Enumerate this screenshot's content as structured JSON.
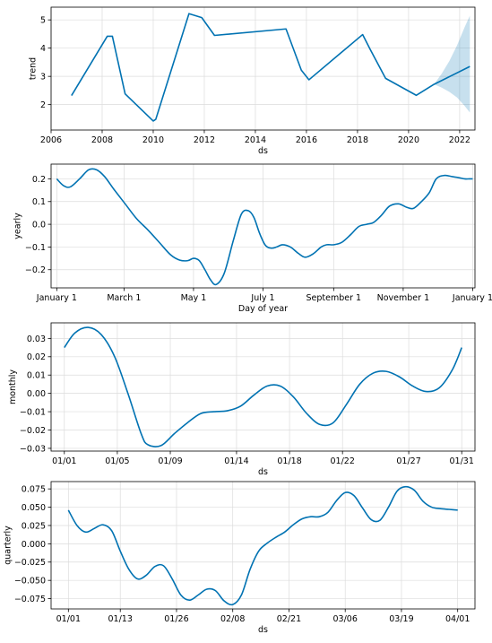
{
  "chart_data": [
    {
      "type": "line",
      "name_id": "trend",
      "xlabel": "ds",
      "ylabel": "trend",
      "xlim": [
        2006,
        2022.6
      ],
      "ylim": [
        1.1,
        5.45
      ],
      "grid": true,
      "xticks": [
        2006,
        2008,
        2010,
        2012,
        2014,
        2016,
        2018,
        2020,
        2022
      ],
      "xtick_labels": [
        "2006",
        "2008",
        "2010",
        "2012",
        "2014",
        "2016",
        "2018",
        "2020",
        "2022"
      ],
      "yticks": [
        2,
        3,
        4,
        5
      ],
      "ytick_labels": [
        "2",
        "3",
        "4",
        "5"
      ],
      "x": [
        2006.8,
        2008.2,
        2008.4,
        2008.9,
        2010.0,
        2010.1,
        2011.4,
        2011.9,
        2012.4,
        2015.2,
        2015.8,
        2016.1,
        2018.2,
        2018.5,
        2019.1,
        2020.3,
        2021.0,
        2022.4
      ],
      "y": [
        2.32,
        4.42,
        4.42,
        2.38,
        1.42,
        1.48,
        5.22,
        5.08,
        4.45,
        4.68,
        3.22,
        2.88,
        4.48,
        3.95,
        2.93,
        2.33,
        2.72,
        3.35
      ],
      "uncertainty": {
        "x": [
          2021.0,
          2021.3,
          2021.6,
          2021.9,
          2022.2,
          2022.4
        ],
        "upper": [
          2.72,
          3.1,
          3.55,
          4.1,
          4.75,
          5.15
        ],
        "lower": [
          2.72,
          2.6,
          2.45,
          2.25,
          1.95,
          1.72
        ]
      }
    },
    {
      "type": "line",
      "name_id": "yearly",
      "xlabel": "Day of year",
      "ylabel": "yearly",
      "xlim": [
        -5,
        367
      ],
      "ylim": [
        -0.28,
        0.265
      ],
      "grid": true,
      "xticks": [
        0,
        59,
        120,
        181,
        243,
        304,
        365
      ],
      "xtick_labels": [
        "January 1",
        "March 1",
        "May 1",
        "July 1",
        "September 1",
        "November 1",
        "January 1"
      ],
      "yticks": [
        -0.2,
        -0.1,
        0.0,
        0.1,
        0.2
      ],
      "ytick_labels": [
        "−0.2",
        "−0.1",
        "0.0",
        "0.1",
        "0.2"
      ],
      "x": [
        0,
        6,
        12,
        20,
        28,
        35,
        42,
        50,
        60,
        70,
        80,
        90,
        100,
        108,
        115,
        120,
        125,
        130,
        135,
        140,
        147,
        155,
        162,
        168,
        173,
        178,
        183,
        188,
        193,
        198,
        205,
        212,
        218,
        225,
        232,
        237,
        243,
        250,
        258,
        265,
        272,
        278,
        285,
        292,
        300,
        307,
        313,
        320,
        327,
        333,
        340,
        347,
        353,
        358,
        362,
        365
      ],
      "y": [
        0.2,
        0.17,
        0.165,
        0.2,
        0.24,
        0.24,
        0.21,
        0.155,
        0.09,
        0.025,
        -0.025,
        -0.08,
        -0.135,
        -0.158,
        -0.16,
        -0.15,
        -0.16,
        -0.2,
        -0.245,
        -0.265,
        -0.215,
        -0.07,
        0.045,
        0.06,
        0.03,
        -0.04,
        -0.092,
        -0.105,
        -0.1,
        -0.09,
        -0.1,
        -0.128,
        -0.145,
        -0.13,
        -0.1,
        -0.09,
        -0.09,
        -0.08,
        -0.045,
        -0.01,
        0.0,
        0.008,
        0.04,
        0.08,
        0.09,
        0.075,
        0.07,
        0.1,
        0.14,
        0.2,
        0.215,
        0.21,
        0.205,
        0.2,
        0.2,
        0.2
      ]
    },
    {
      "type": "line",
      "name_id": "monthly",
      "xlabel": "ds",
      "ylabel": "monthly",
      "xlim": [
        -1,
        31
      ],
      "ylim": [
        -0.0315,
        0.0385
      ],
      "grid": true,
      "xticks": [
        0,
        4,
        8,
        13,
        17,
        21,
        26,
        30
      ],
      "xtick_labels": [
        "01/01",
        "01/05",
        "01/09",
        "01/14",
        "01/18",
        "01/22",
        "01/27",
        "01/31"
      ],
      "yticks": [
        -0.03,
        -0.02,
        -0.01,
        0.0,
        0.01,
        0.02,
        0.03
      ],
      "ytick_labels": [
        "−0.03",
        "−0.02",
        "−0.01",
        "0.00",
        "0.01",
        "0.02",
        "0.03"
      ],
      "x": [
        0,
        0.8,
        1.8,
        2.8,
        3.8,
        4.8,
        5.8,
        6.3,
        7.3,
        8.3,
        9.3,
        10.3,
        11.3,
        12.3,
        13.3,
        14.3,
        15.3,
        16.3,
        17.3,
        18.3,
        19.3,
        20.3,
        21.3,
        22.3,
        23.3,
        24.3,
        25.3,
        26.3,
        27.3,
        28.3,
        29.3,
        30
      ],
      "y": [
        0.025,
        0.033,
        0.036,
        0.032,
        0.02,
        0.0,
        -0.022,
        -0.028,
        -0.0285,
        -0.022,
        -0.016,
        -0.011,
        -0.01,
        -0.0095,
        -0.007,
        -0.001,
        0.004,
        0.004,
        -0.002,
        -0.011,
        -0.017,
        -0.016,
        -0.006,
        0.005,
        0.011,
        0.012,
        0.009,
        0.004,
        0.001,
        0.003,
        0.013,
        0.025
      ]
    },
    {
      "type": "line",
      "name_id": "quarterly",
      "xlabel": "ds",
      "ylabel": "quarterly",
      "xlim": [
        -4,
        94
      ],
      "ylim": [
        -0.089,
        0.085
      ],
      "grid": true,
      "xticks": [
        0,
        12,
        25,
        38,
        51,
        64,
        77,
        90
      ],
      "xtick_labels": [
        "01/01",
        "01/13",
        "01/26",
        "02/08",
        "02/21",
        "03/06",
        "03/19",
        "04/01"
      ],
      "yticks": [
        -0.075,
        -0.05,
        -0.025,
        0.0,
        0.025,
        0.05,
        0.075
      ],
      "ytick_labels": [
        "−0.075",
        "−0.050",
        "−0.025",
        "0.000",
        "0.025",
        "0.050",
        "0.075"
      ],
      "x": [
        0,
        2,
        4,
        6,
        8,
        10,
        12,
        14,
        16,
        18,
        20,
        22,
        24,
        26,
        28,
        30,
        32,
        34,
        36,
        38,
        40,
        42,
        44,
        46,
        48,
        50,
        52,
        54,
        56,
        58,
        60,
        62,
        64,
        66,
        68,
        70,
        72,
        74,
        76,
        78,
        80,
        82,
        84,
        86,
        88,
        90
      ],
      "y": [
        0.046,
        0.025,
        0.016,
        0.021,
        0.026,
        0.018,
        -0.01,
        -0.035,
        -0.048,
        -0.043,
        -0.031,
        -0.03,
        -0.048,
        -0.07,
        -0.077,
        -0.07,
        -0.062,
        -0.064,
        -0.078,
        -0.083,
        -0.07,
        -0.035,
        -0.01,
        0.001,
        0.009,
        0.016,
        0.026,
        0.034,
        0.037,
        0.037,
        0.043,
        0.059,
        0.07,
        0.066,
        0.049,
        0.033,
        0.032,
        0.05,
        0.072,
        0.078,
        0.073,
        0.058,
        0.05,
        0.048,
        0.047,
        0.046
      ]
    }
  ]
}
